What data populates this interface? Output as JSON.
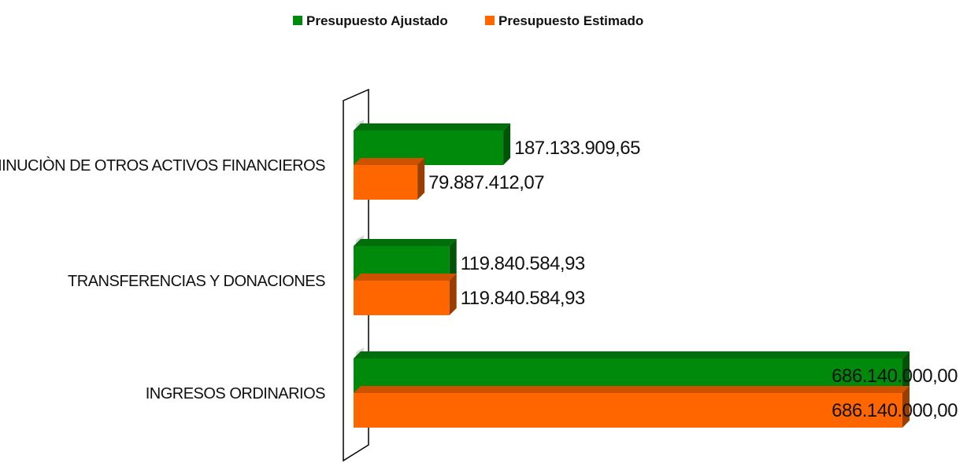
{
  "chart_data": {
    "type": "bar",
    "orientation": "horizontal",
    "style": "3d",
    "legend_position": "top",
    "grid": false,
    "xlim": [
      0,
      700000000
    ],
    "categories": [
      "DISMINUCIÒN DE OTROS ACTIVOS FINANCIEROS",
      "TRANSFERENCIAS Y DONACIONES",
      "INGRESOS ORDINARIOS"
    ],
    "series": [
      {
        "name": "Presupuesto Ajustado",
        "color": "#008a0c",
        "values": [
          187133909.65,
          119840584.93,
          686140000.0
        ],
        "labels": [
          "187.133.909,65",
          "119.840.584,93",
          "686.140.000,00"
        ]
      },
      {
        "name": "Presupuesto Estimado",
        "color": "#ff6600",
        "values": [
          79887412.07,
          119840584.93,
          686140000.0
        ],
        "labels": [
          "79.887.412,07",
          "119.840.584,93",
          "686.140.000,00"
        ]
      }
    ]
  }
}
